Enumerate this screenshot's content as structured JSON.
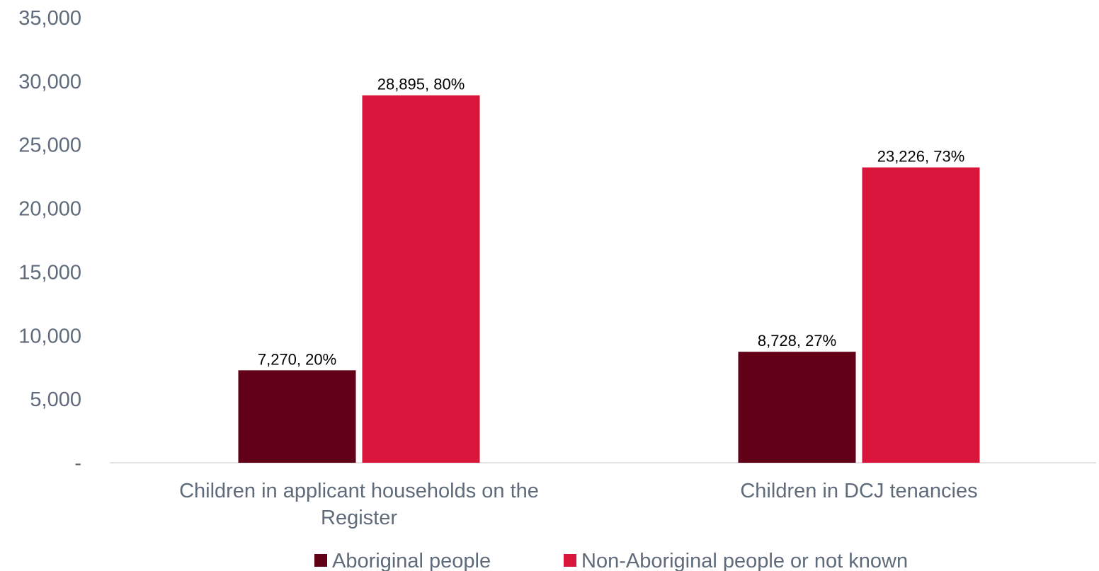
{
  "chart_data": {
    "type": "bar",
    "categories": [
      [
        "Children in applicant households on the",
        "Register"
      ],
      [
        "Children in DCJ tenancies"
      ]
    ],
    "series": [
      {
        "name": "Aboriginal people",
        "color": "#620018",
        "values": [
          7270,
          8728
        ],
        "labels": [
          "7,270, 20%",
          "8,728, 27%"
        ]
      },
      {
        "name": "Non-Aboriginal people or not known",
        "color": "#d9153b",
        "values": [
          28895,
          23226
        ],
        "labels": [
          "28,895, 80%",
          "23,226, 73%"
        ]
      }
    ],
    "ylim": [
      0,
      35000
    ],
    "yticks": [
      0,
      5000,
      10000,
      15000,
      20000,
      25000,
      30000,
      35000
    ],
    "ytick_labels": [
      "-",
      "5,000",
      "10,000",
      "15,000",
      "20,000",
      "25,000",
      "30,000",
      "35,000"
    ],
    "legend_position": "bottom",
    "grid": false
  }
}
